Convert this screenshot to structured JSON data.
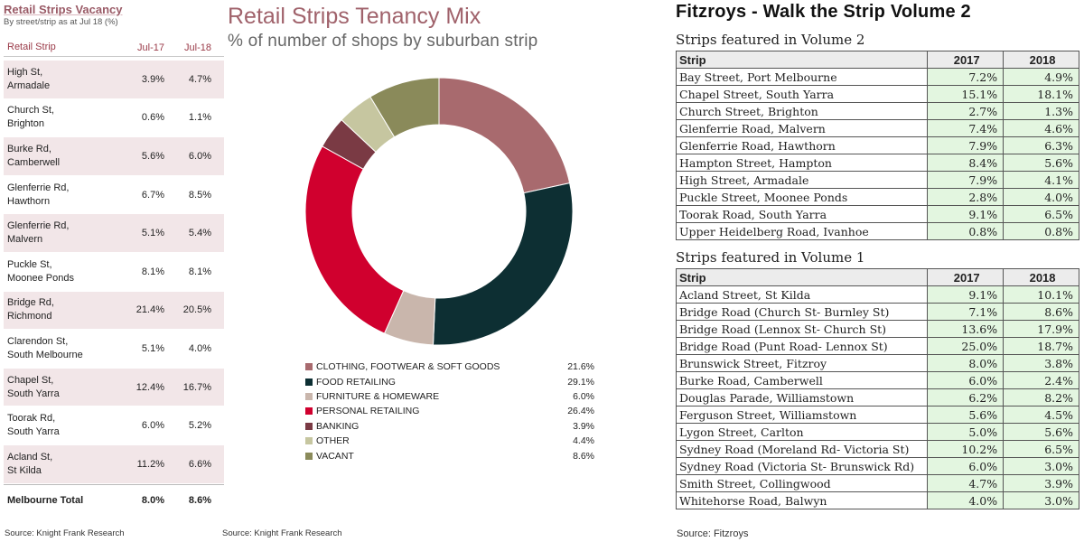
{
  "vacancy": {
    "title": "Retail Strips Vacancy",
    "subtitle": "By street/strip as at Jul 18 (%)",
    "headers": [
      "Retail Strip",
      "Jul-17",
      "Jul-18"
    ],
    "rows": [
      {
        "name": "High St,\nArmadale",
        "jul17": "3.9%",
        "jul18": "4.7%"
      },
      {
        "name": "Church St,\nBrighton",
        "jul17": "0.6%",
        "jul18": "1.1%"
      },
      {
        "name": "Burke Rd,\nCamberwell",
        "jul17": "5.6%",
        "jul18": "6.0%"
      },
      {
        "name": "Glenferrie Rd,\nHawthorn",
        "jul17": "6.7%",
        "jul18": "8.5%"
      },
      {
        "name": "Glenferrie Rd,\nMalvern",
        "jul17": "5.1%",
        "jul18": "5.4%"
      },
      {
        "name": "Puckle St,\nMoonee Ponds",
        "jul17": "8.1%",
        "jul18": "8.1%"
      },
      {
        "name": "Bridge Rd,\nRichmond",
        "jul17": "21.4%",
        "jul18": "20.5%"
      },
      {
        "name": "Clarendon St,\nSouth Melbourne",
        "jul17": "5.1%",
        "jul18": "4.0%"
      },
      {
        "name": "Chapel St,\nSouth Yarra",
        "jul17": "12.4%",
        "jul18": "16.7%"
      },
      {
        "name": "Toorak Rd,\nSouth Yarra",
        "jul17": "6.0%",
        "jul18": "5.2%"
      },
      {
        "name": "Acland St,\nSt Kilda",
        "jul17": "11.2%",
        "jul18": "6.6%"
      }
    ],
    "total": {
      "name": "Melbourne Total",
      "jul17": "8.0%",
      "jul18": "8.6%"
    },
    "source": "Source: Knight Frank Research"
  },
  "tenancy": {
    "title": "Retail Strips Tenancy Mix",
    "subtitle": "% of number of shops by suburban strip",
    "source": "Source: Knight Frank Research"
  },
  "fitzroys": {
    "title": "Fitzroys - Walk the Strip Volume 2",
    "volume2": {
      "title": "Strips featured in Volume 2",
      "headers": [
        "Strip",
        "2017",
        "2018"
      ],
      "rows": [
        {
          "name": "Bay Street, Port Melbourne",
          "y2017": "7.2%",
          "y2018": "4.9%"
        },
        {
          "name": "Chapel Street, South Yarra",
          "y2017": "15.1%",
          "y2018": "18.1%"
        },
        {
          "name": "Church Street, Brighton",
          "y2017": "2.7%",
          "y2018": "1.3%"
        },
        {
          "name": "Glenferrie Road, Malvern",
          "y2017": "7.4%",
          "y2018": "4.6%"
        },
        {
          "name": "Glenferrie Road, Hawthorn",
          "y2017": "7.9%",
          "y2018": "6.3%"
        },
        {
          "name": "Hampton Street, Hampton",
          "y2017": "8.4%",
          "y2018": "5.6%"
        },
        {
          "name": "High Street, Armadale",
          "y2017": "7.9%",
          "y2018": "4.1%"
        },
        {
          "name": "Puckle Street, Moonee Ponds",
          "y2017": "2.8%",
          "y2018": "4.0%"
        },
        {
          "name": "Toorak Road, South Yarra",
          "y2017": "9.1%",
          "y2018": "6.5%"
        },
        {
          "name": "Upper Heidelberg Road, Ivanhoe",
          "y2017": "0.8%",
          "y2018": "0.8%"
        }
      ]
    },
    "volume1": {
      "title": "Strips featured in Volume 1",
      "headers": [
        "Strip",
        "2017",
        "2018"
      ],
      "rows": [
        {
          "name": "Acland Street, St Kilda",
          "y2017": "9.1%",
          "y2018": "10.1%"
        },
        {
          "name": "Bridge Road (Church St- Burnley St)",
          "y2017": "7.1%",
          "y2018": "8.6%"
        },
        {
          "name": "Bridge Road (Lennox St- Church St)",
          "y2017": "13.6%",
          "y2018": "17.9%"
        },
        {
          "name": "Bridge Road (Punt Road- Lennox St)",
          "y2017": "25.0%",
          "y2018": "18.7%"
        },
        {
          "name": "Brunswick Street, Fitzroy",
          "y2017": "8.0%",
          "y2018": "3.8%"
        },
        {
          "name": "Burke Road, Camberwell",
          "y2017": "6.0%",
          "y2018": "2.4%"
        },
        {
          "name": "Douglas Parade, Williamstown",
          "y2017": "6.2%",
          "y2018": "8.2%"
        },
        {
          "name": "Ferguson Street, Williamstown",
          "y2017": "5.6%",
          "y2018": "4.5%"
        },
        {
          "name": "Lygon Street, Carlton",
          "y2017": "5.0%",
          "y2018": "5.6%"
        },
        {
          "name": "Sydney Road (Moreland Rd- Victoria St)",
          "y2017": "10.2%",
          "y2018": "6.5%"
        },
        {
          "name": "Sydney Road (Victoria St- Brunswick Rd)",
          "y2017": "6.0%",
          "y2018": "3.0%"
        },
        {
          "name": "Smith Street, Collingwood",
          "y2017": "4.7%",
          "y2018": "3.9%"
        },
        {
          "name": "Whitehorse Road, Balwyn",
          "y2017": "4.0%",
          "y2018": "3.0%"
        }
      ]
    },
    "source": "Source: Fitzroys"
  },
  "chart_data": {
    "type": "pie",
    "title": "Retail Strips Tenancy Mix",
    "subtitle": "% of number of shops by suburban strip",
    "legend_position": "bottom",
    "categories": [
      "CLOTHING, FOOTWEAR & SOFT GOODS",
      "FOOD RETAILING",
      "FURNITURE & HOMEWARE",
      "PERSONAL RETAILING",
      "BANKING",
      "OTHER",
      "VACANT"
    ],
    "values": [
      21.6,
      29.1,
      6.0,
      26.4,
      3.9,
      4.4,
      8.6
    ],
    "labels": [
      "21.6%",
      "29.1%",
      "6.0%",
      "26.4%",
      "3.9%",
      "4.4%",
      "8.6%"
    ],
    "colors": [
      "#a86a6e",
      "#0d2f33",
      "#c9b6ac",
      "#d0002e",
      "#7a3a44",
      "#c6c6a0",
      "#8a8a5a"
    ]
  }
}
